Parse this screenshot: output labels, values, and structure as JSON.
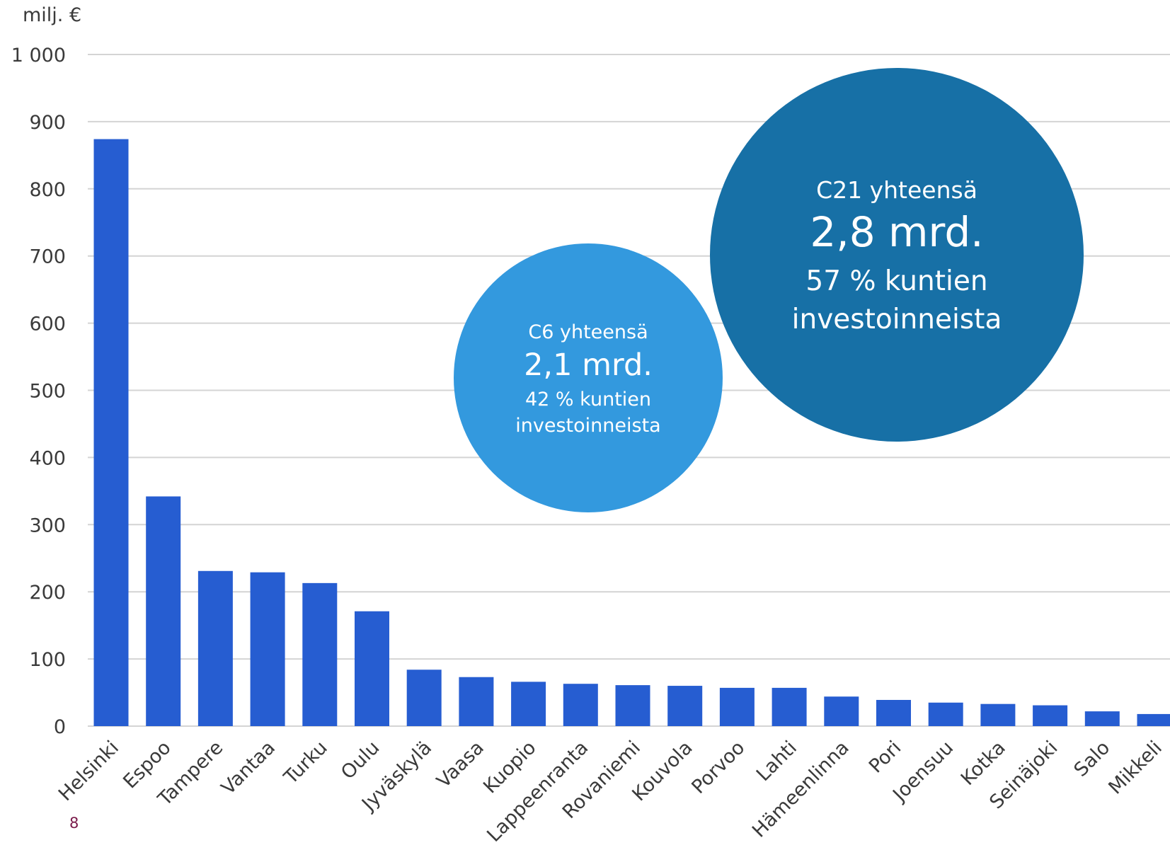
{
  "chart_data": {
    "type": "bar",
    "ylabel": "milj. €",
    "ylim": [
      0,
      1000
    ],
    "yticks": [
      "0",
      "100",
      "200",
      "300",
      "400",
      "500",
      "600",
      "700",
      "800",
      "900",
      "1 000"
    ],
    "categories": [
      "Helsinki",
      "Espoo",
      "Tampere",
      "Vantaa",
      "Turku",
      "Oulu",
      "Jyväskylä",
      "Vaasa",
      "Kuopio",
      "Lappeenranta",
      "Rovaniemi",
      "Kouvola",
      "Porvoo",
      "Lahti",
      "Hämeenlinna",
      "Pori",
      "Joensuu",
      "Kotka",
      "Seinäjoki",
      "Salo",
      "Mikkeli"
    ],
    "values": [
      874,
      342,
      231,
      229,
      213,
      171,
      84,
      73,
      66,
      63,
      61,
      60,
      57,
      57,
      44,
      39,
      35,
      33,
      31,
      22,
      18
    ],
    "bar_color": "#265dd1",
    "grid": true,
    "annotations": [
      {
        "id": "c6",
        "label": "C6 yhteensä",
        "value": "2,1 mrd.",
        "line1": "42 % kuntien",
        "line2": "investoinneista",
        "color": "#3399de"
      },
      {
        "id": "c21",
        "label": "C21 yhteensä",
        "value": "2,8 mrd.",
        "line1": "57 % kuntien",
        "line2": "investoinneista",
        "color": "#1770a6"
      }
    ]
  },
  "page_number": "8"
}
